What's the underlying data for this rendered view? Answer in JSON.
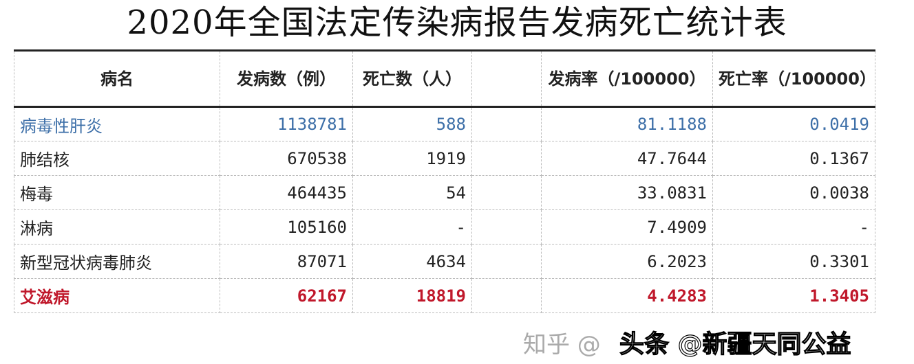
{
  "title": "2020年全国法定传染病报告发病死亡统计表",
  "headers": [
    "病名",
    "发病数（例）",
    "死亡数（人）",
    "",
    "发病率（/100000）",
    "死亡率（/100000）"
  ],
  "rows": [
    {
      "name": "病毒性肝炎",
      "cases": "1138781",
      "deaths": "588",
      "incidence": "81.1188",
      "mortality": "0.0419",
      "color": "#3d6fa8"
    },
    {
      "name": "肺结核",
      "cases": "670538",
      "deaths": "1919",
      "incidence": "47.7644",
      "mortality": "0.1367"
    },
    {
      "name": "梅毒",
      "cases": "464435",
      "deaths": "54",
      "incidence": "33.0831",
      "mortality": "0.0038"
    },
    {
      "name": "淋病",
      "cases": "105160",
      "deaths": "-",
      "incidence": "7.4909",
      "mortality": "-"
    },
    {
      "name": "新型冠状病毒肺炎",
      "cases": "87071",
      "deaths": "4634",
      "incidence": "6.2023",
      "mortality": "0.3301"
    },
    {
      "name": "艾滋病",
      "cases": "62167",
      "deaths": "18819",
      "incidence": "4.4283",
      "mortality": "1.3405",
      "color": "#c0182b"
    }
  ],
  "watermarks": [
    "知乎 @",
    "头条 @新疆天同公益"
  ]
}
